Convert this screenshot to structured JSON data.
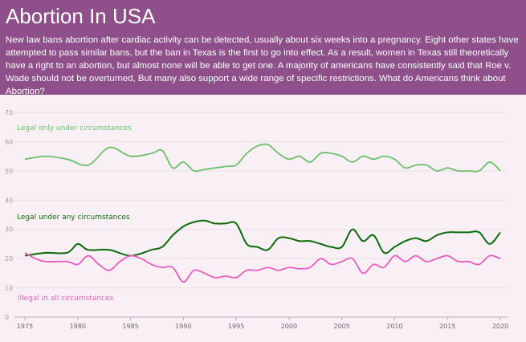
{
  "header": {
    "title": "Abortion In USA",
    "description": "New law bans abortion after cardiac activity can be detected, usually about six weeks into a pregnancy. Eight other states have attempted to pass similar bans, but the ban in Texas is the first to go into effect. As a result, women in Texas still theoretically have a right to an abortion, but almost none will be able to get one. A majority of americans have consistently said that Roe v. Wade should not be overturned, But many also support a wide range of specific restrictions. What do Americans think about Abortion?"
  },
  "colors": {
    "header_bg": "#8e4f8a",
    "chart_bg": "#f8f0f5",
    "legal_circumstances": "#6cbf6c",
    "legal_any": "#0a6b0a",
    "illegal": "#e95cbf"
  },
  "chart_data": {
    "type": "line",
    "xlabel": "",
    "ylabel": "",
    "xlim": [
      1975,
      2020
    ],
    "ylim": [
      0,
      70
    ],
    "x_ticks": [
      1975,
      1980,
      1985,
      1990,
      1995,
      2000,
      2005,
      2010,
      2015,
      2020
    ],
    "y_ticks": [
      0,
      10,
      20,
      30,
      40,
      50,
      60,
      70
    ],
    "grid": true,
    "legend": "inline labels",
    "series": [
      {
        "name": "Legal only under circumstances",
        "color": "#6cbf6c",
        "points": [
          [
            1975,
            54
          ],
          [
            1977,
            55
          ],
          [
            1979,
            54
          ],
          [
            1981,
            52
          ],
          [
            1983,
            58
          ],
          [
            1985,
            55
          ],
          [
            1987,
            56
          ],
          [
            1988,
            57
          ],
          [
            1989,
            51
          ],
          [
            1990,
            53
          ],
          [
            1991,
            50
          ],
          [
            1992,
            50.5
          ],
          [
            1994,
            51.5
          ],
          [
            1995,
            52
          ],
          [
            1996,
            56
          ],
          [
            1997,
            58.5
          ],
          [
            1998,
            59
          ],
          [
            1999,
            56
          ],
          [
            2000,
            54
          ],
          [
            2001,
            55
          ],
          [
            2002,
            53
          ],
          [
            2003,
            56
          ],
          [
            2004,
            56
          ],
          [
            2005,
            55
          ],
          [
            2006,
            53
          ],
          [
            2007,
            55
          ],
          [
            2008,
            54
          ],
          [
            2009,
            55
          ],
          [
            2010,
            54
          ],
          [
            2011,
            51
          ],
          [
            2012,
            52
          ],
          [
            2013,
            52
          ],
          [
            2014,
            50
          ],
          [
            2015,
            51
          ],
          [
            2016,
            50
          ],
          [
            2017,
            50
          ],
          [
            2018,
            50
          ],
          [
            2019,
            53
          ],
          [
            2020,
            50
          ]
        ]
      },
      {
        "name": "Legal under any circumstances",
        "color": "#0a6b0a",
        "points": [
          [
            1975,
            21
          ],
          [
            1977,
            22
          ],
          [
            1979,
            22
          ],
          [
            1980,
            25
          ],
          [
            1981,
            23
          ],
          [
            1983,
            23
          ],
          [
            1985,
            21
          ],
          [
            1987,
            23
          ],
          [
            1988,
            24
          ],
          [
            1989,
            28
          ],
          [
            1990,
            31
          ],
          [
            1991,
            32.5
          ],
          [
            1992,
            33
          ],
          [
            1993,
            32
          ],
          [
            1994,
            32
          ],
          [
            1995,
            32
          ],
          [
            1996,
            25
          ],
          [
            1997,
            24
          ],
          [
            1998,
            23
          ],
          [
            1999,
            27
          ],
          [
            2000,
            27
          ],
          [
            2001,
            26
          ],
          [
            2002,
            26
          ],
          [
            2003,
            25
          ],
          [
            2004,
            24
          ],
          [
            2005,
            24
          ],
          [
            2006,
            30
          ],
          [
            2007,
            26
          ],
          [
            2008,
            28
          ],
          [
            2009,
            22
          ],
          [
            2010,
            24
          ],
          [
            2011,
            26
          ],
          [
            2012,
            27
          ],
          [
            2013,
            26
          ],
          [
            2014,
            28
          ],
          [
            2015,
            29
          ],
          [
            2016,
            29
          ],
          [
            2017,
            29
          ],
          [
            2018,
            29
          ],
          [
            2019,
            25
          ],
          [
            2020,
            29
          ]
        ]
      },
      {
        "name": "Illegal in all circumstances",
        "color": "#e95cbf",
        "points": [
          [
            1975,
            22
          ],
          [
            1976,
            20
          ],
          [
            1977,
            19
          ],
          [
            1979,
            19
          ],
          [
            1980,
            18
          ],
          [
            1981,
            21
          ],
          [
            1982,
            18
          ],
          [
            1983,
            16
          ],
          [
            1984,
            19
          ],
          [
            1985,
            21
          ],
          [
            1986,
            20
          ],
          [
            1987,
            18
          ],
          [
            1988,
            17
          ],
          [
            1989,
            17
          ],
          [
            1990,
            12
          ],
          [
            1991,
            16
          ],
          [
            1992,
            15
          ],
          [
            1993,
            13.5
          ],
          [
            1994,
            14
          ],
          [
            1995,
            13.5
          ],
          [
            1996,
            16
          ],
          [
            1997,
            16
          ],
          [
            1998,
            17
          ],
          [
            1999,
            16
          ],
          [
            2000,
            17
          ],
          [
            2001,
            16.5
          ],
          [
            2002,
            17
          ],
          [
            2003,
            20
          ],
          [
            2004,
            18
          ],
          [
            2005,
            19
          ],
          [
            2006,
            20
          ],
          [
            2007,
            15
          ],
          [
            2008,
            18
          ],
          [
            2009,
            17
          ],
          [
            2010,
            21
          ],
          [
            2011,
            19
          ],
          [
            2012,
            21
          ],
          [
            2013,
            19
          ],
          [
            2014,
            20
          ],
          [
            2015,
            21
          ],
          [
            2016,
            19
          ],
          [
            2017,
            19
          ],
          [
            2018,
            18
          ],
          [
            2019,
            21
          ],
          [
            2020,
            20
          ]
        ]
      }
    ]
  }
}
